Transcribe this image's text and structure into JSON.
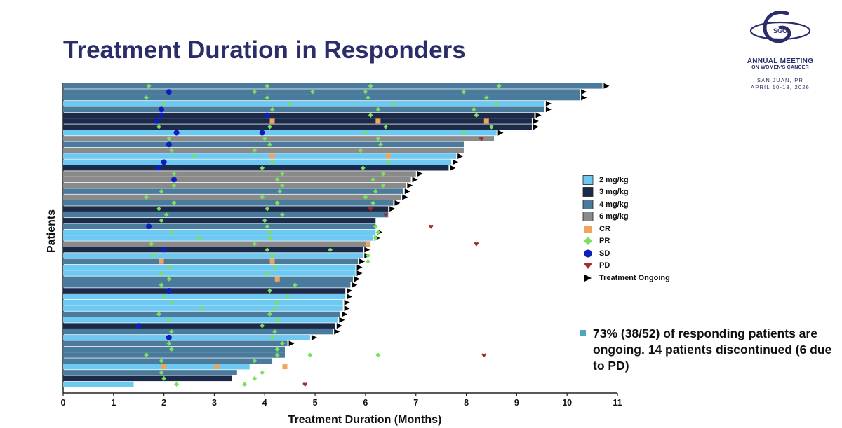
{
  "title": "Treatment Duration in Responders",
  "logo": {
    "mark": "SGO",
    "line1": "ANNUAL MEETING",
    "line2": "ON WOMEN'S CANCER",
    "line3": "SAN JUAN, PR",
    "line4": "APRIL 10-13, 2026"
  },
  "note": "73% (38/52) of responding patients are ongoing. 14 patients discontinued (6 due to PD)",
  "legend": [
    {
      "label": "2 mg/kg",
      "kind": "box",
      "color": "#6ec9f2"
    },
    {
      "label": "3 mg/kg",
      "kind": "box",
      "color": "#1c2a4a"
    },
    {
      "label": "4 mg/kg",
      "kind": "box",
      "color": "#4a7a9c"
    },
    {
      "label": "6 mg/kg",
      "kind": "box",
      "color": "#8a8a8a"
    },
    {
      "label": "CR",
      "kind": "square",
      "color": "#f2a55a"
    },
    {
      "label": "PR",
      "kind": "diamond",
      "color": "#7be060"
    },
    {
      "label": "SD",
      "kind": "circle",
      "color": "#0c1fbd"
    },
    {
      "label": "PD",
      "kind": "heart",
      "color": "#a82a2a"
    },
    {
      "label": "Treatment Ongoing",
      "kind": "triangle",
      "color": "#000000"
    }
  ],
  "chart_data": {
    "type": "swimmer",
    "title": "Treatment Duration in Responders",
    "xlabel": "Treatment Duration (Months)",
    "ylabel": "Patients",
    "xlim": [
      0,
      11
    ],
    "xticks": [
      0,
      1,
      2,
      3,
      4,
      5,
      6,
      7,
      8,
      9,
      10,
      11
    ],
    "dose_colors": {
      "2": "#6ec9f2",
      "3": "#1c2a4a",
      "4": "#4a7a9c",
      "6": "#8a8a8a"
    },
    "marker_colors": {
      "CR": "#f2a55a",
      "PR": "#7be060",
      "SD": "#0c1fbd",
      "PD": "#a82a2a"
    },
    "patients": [
      {
        "dose": 4,
        "duration": 10.7,
        "ongoing": true,
        "markers": [
          {
            "t": "PR",
            "x": 1.7
          },
          {
            "t": "PR",
            "x": 4.05
          },
          {
            "t": "PR",
            "x": 6.1
          },
          {
            "t": "PR",
            "x": 8.65
          }
        ]
      },
      {
        "dose": 4,
        "duration": 10.25,
        "ongoing": true,
        "markers": [
          {
            "t": "SD",
            "x": 2.1
          },
          {
            "t": "PR",
            "x": 3.8
          },
          {
            "t": "PR",
            "x": 4.95
          },
          {
            "t": "PR",
            "x": 6.0
          },
          {
            "t": "PR",
            "x": 7.95
          }
        ]
      },
      {
        "dose": 4,
        "duration": 10.25,
        "ongoing": true,
        "markers": [
          {
            "t": "PR",
            "x": 1.65
          },
          {
            "t": "PR",
            "x": 4.05
          },
          {
            "t": "PR",
            "x": 6.05
          },
          {
            "t": "PR",
            "x": 8.4
          }
        ]
      },
      {
        "dose": 2,
        "duration": 9.55,
        "ongoing": true,
        "markers": [
          {
            "t": "PR",
            "x": 2.0
          },
          {
            "t": "PR",
            "x": 4.5
          },
          {
            "t": "PR",
            "x": 6.55
          },
          {
            "t": "PR",
            "x": 8.6
          }
        ]
      },
      {
        "dose": 4,
        "duration": 9.55,
        "ongoing": true,
        "markers": [
          {
            "t": "SD",
            "x": 1.95
          },
          {
            "t": "PR",
            "x": 4.15
          },
          {
            "t": "PR",
            "x": 6.25
          },
          {
            "t": "PR",
            "x": 8.15
          }
        ]
      },
      {
        "dose": 3,
        "duration": 9.35,
        "ongoing": true,
        "markers": [
          {
            "t": "SD",
            "x": 1.95
          },
          {
            "t": "SD",
            "x": 4.05
          },
          {
            "t": "PR",
            "x": 6.1
          },
          {
            "t": "PR",
            "x": 8.2
          }
        ]
      },
      {
        "dose": 3,
        "duration": 9.3,
        "ongoing": true,
        "markers": [
          {
            "t": "SD",
            "x": 1.85
          },
          {
            "t": "CR",
            "x": 4.15
          },
          {
            "t": "CR",
            "x": 6.25
          },
          {
            "t": "CR",
            "x": 8.4
          }
        ]
      },
      {
        "dose": 3,
        "duration": 9.3,
        "ongoing": true,
        "markers": [
          {
            "t": "PR",
            "x": 1.9
          },
          {
            "t": "PR",
            "x": 4.1
          },
          {
            "t": "PR",
            "x": 6.4
          },
          {
            "t": "PR",
            "x": 8.5
          }
        ]
      },
      {
        "dose": 2,
        "duration": 8.6,
        "ongoing": true,
        "markers": [
          {
            "t": "SD",
            "x": 2.25
          },
          {
            "t": "SD",
            "x": 3.95
          },
          {
            "t": "PR",
            "x": 6.0
          },
          {
            "t": "PR",
            "x": 7.95
          }
        ]
      },
      {
        "dose": 6,
        "duration": 8.55,
        "ongoing": false,
        "markers": [
          {
            "t": "PR",
            "x": 2.1
          },
          {
            "t": "PR",
            "x": 4.0
          },
          {
            "t": "PR",
            "x": 6.25
          },
          {
            "t": "PD",
            "x": 8.3
          }
        ]
      },
      {
        "dose": 4,
        "duration": 7.95,
        "ongoing": false,
        "markers": [
          {
            "t": "SD",
            "x": 2.1
          },
          {
            "t": "PR",
            "x": 4.1
          },
          {
            "t": "PR",
            "x": 6.3
          }
        ]
      },
      {
        "dose": 6,
        "duration": 7.95,
        "ongoing": false,
        "markers": [
          {
            "t": "PR",
            "x": 2.15
          },
          {
            "t": "PR",
            "x": 3.8
          },
          {
            "t": "PR",
            "x": 5.9
          }
        ]
      },
      {
        "dose": 2,
        "duration": 7.8,
        "ongoing": true,
        "markers": [
          {
            "t": "PR",
            "x": 2.6
          },
          {
            "t": "CR",
            "x": 4.15
          },
          {
            "t": "CR",
            "x": 6.45
          }
        ]
      },
      {
        "dose": 2,
        "duration": 7.7,
        "ongoing": true,
        "markers": [
          {
            "t": "SD",
            "x": 2.0
          },
          {
            "t": "PR",
            "x": 4.15
          },
          {
            "t": "PR",
            "x": 6.45
          }
        ]
      },
      {
        "dose": 3,
        "duration": 7.65,
        "ongoing": true,
        "markers": [
          {
            "t": "SD",
            "x": 1.9
          },
          {
            "t": "PR",
            "x": 3.95
          },
          {
            "t": "PR",
            "x": 5.95
          }
        ]
      },
      {
        "dose": 6,
        "duration": 7.0,
        "ongoing": true,
        "markers": [
          {
            "t": "PR",
            "x": 2.2
          },
          {
            "t": "PR",
            "x": 4.35
          },
          {
            "t": "PR",
            "x": 6.35
          }
        ]
      },
      {
        "dose": 6,
        "duration": 6.9,
        "ongoing": true,
        "markers": [
          {
            "t": "SD",
            "x": 2.2
          },
          {
            "t": "PR",
            "x": 4.25
          },
          {
            "t": "PR",
            "x": 6.15
          }
        ]
      },
      {
        "dose": 6,
        "duration": 6.8,
        "ongoing": true,
        "markers": [
          {
            "t": "PR",
            "x": 2.2
          },
          {
            "t": "PR",
            "x": 4.35
          },
          {
            "t": "PR",
            "x": 6.35
          }
        ]
      },
      {
        "dose": 4,
        "duration": 6.75,
        "ongoing": true,
        "markers": [
          {
            "t": "PR",
            "x": 1.95
          },
          {
            "t": "PR",
            "x": 4.3
          },
          {
            "t": "PR",
            "x": 6.2
          }
        ]
      },
      {
        "dose": 6,
        "duration": 6.7,
        "ongoing": true,
        "markers": [
          {
            "t": "PR",
            "x": 1.65
          },
          {
            "t": "PR",
            "x": 3.95
          },
          {
            "t": "PR",
            "x": 6.0
          }
        ]
      },
      {
        "dose": 4,
        "duration": 6.55,
        "ongoing": true,
        "markers": [
          {
            "t": "PR",
            "x": 2.2
          },
          {
            "t": "PR",
            "x": 4.25
          },
          {
            "t": "PR",
            "x": 6.15
          }
        ]
      },
      {
        "dose": 3,
        "duration": 6.45,
        "ongoing": true,
        "markers": [
          {
            "t": "PR",
            "x": 1.9
          },
          {
            "t": "PR",
            "x": 4.05
          },
          {
            "t": "PD",
            "x": 6.1
          }
        ]
      },
      {
        "dose": 4,
        "duration": 6.45,
        "ongoing": false,
        "markers": [
          {
            "t": "PR",
            "x": 2.05
          },
          {
            "t": "PR",
            "x": 4.35
          },
          {
            "t": "PD",
            "x": 6.4
          }
        ]
      },
      {
        "dose": 3,
        "duration": 6.2,
        "ongoing": false,
        "markers": [
          {
            "t": "PR",
            "x": 1.95
          },
          {
            "t": "PR",
            "x": 4.0
          }
        ]
      },
      {
        "dose": 4,
        "duration": 6.2,
        "ongoing": false,
        "markers": [
          {
            "t": "SD",
            "x": 1.7
          },
          {
            "t": "PR",
            "x": 4.05
          },
          {
            "t": "PR",
            "x": 6.2
          },
          {
            "t": "PD",
            "x": 7.3
          }
        ]
      },
      {
        "dose": 2,
        "duration": 6.2,
        "ongoing": true,
        "markers": [
          {
            "t": "PR",
            "x": 2.15
          },
          {
            "t": "PR",
            "x": 4.1
          },
          {
            "t": "PR",
            "x": 6.25
          }
        ]
      },
      {
        "dose": 2,
        "duration": 6.15,
        "ongoing": true,
        "markers": [
          {
            "t": "PR",
            "x": 2.7
          },
          {
            "t": "PR",
            "x": 4.1
          },
          {
            "t": "PR",
            "x": 6.2
          }
        ]
      },
      {
        "dose": 6,
        "duration": 6.1,
        "ongoing": false,
        "markers": [
          {
            "t": "PR",
            "x": 1.75
          },
          {
            "t": "PR",
            "x": 3.8
          },
          {
            "t": "CR",
            "x": 6.05
          },
          {
            "t": "PD",
            "x": 8.2
          }
        ]
      },
      {
        "dose": 3,
        "duration": 5.95,
        "ongoing": true,
        "markers": [
          {
            "t": "SD",
            "x": 2.0
          },
          {
            "t": "PR",
            "x": 4.05
          },
          {
            "t": "PR",
            "x": 5.3
          }
        ]
      },
      {
        "dose": 2,
        "duration": 5.95,
        "ongoing": true,
        "markers": [
          {
            "t": "PR",
            "x": 1.8
          },
          {
            "t": "PR",
            "x": 4.15
          },
          {
            "t": "PR",
            "x": 6.05
          }
        ]
      },
      {
        "dose": 4,
        "duration": 5.85,
        "ongoing": true,
        "markers": [
          {
            "t": "CR",
            "x": 1.95
          },
          {
            "t": "CR",
            "x": 4.15
          },
          {
            "t": "PR",
            "x": 6.05
          }
        ]
      },
      {
        "dose": 2,
        "duration": 5.8,
        "ongoing": true,
        "markers": [
          {
            "t": "PR",
            "x": 2.1
          },
          {
            "t": "PR",
            "x": 4.2
          }
        ]
      },
      {
        "dose": 2,
        "duration": 5.8,
        "ongoing": true,
        "markers": [
          {
            "t": "PR",
            "x": 1.95
          },
          {
            "t": "PR",
            "x": 4.05
          }
        ]
      },
      {
        "dose": 4,
        "duration": 5.75,
        "ongoing": true,
        "markers": [
          {
            "t": "PR",
            "x": 2.1
          },
          {
            "t": "CR",
            "x": 4.25
          }
        ]
      },
      {
        "dose": 4,
        "duration": 5.7,
        "ongoing": true,
        "markers": [
          {
            "t": "PR",
            "x": 1.95
          },
          {
            "t": "PR",
            "x": 4.6
          }
        ]
      },
      {
        "dose": 3,
        "duration": 5.6,
        "ongoing": true,
        "markers": [
          {
            "t": "SD",
            "x": 2.1
          },
          {
            "t": "PR",
            "x": 4.1
          }
        ]
      },
      {
        "dose": 2,
        "duration": 5.6,
        "ongoing": true,
        "markers": [
          {
            "t": "PR",
            "x": 2.0
          },
          {
            "t": "PR",
            "x": 4.45
          }
        ]
      },
      {
        "dose": 2,
        "duration": 5.55,
        "ongoing": true,
        "markers": [
          {
            "t": "PR",
            "x": 2.15
          },
          {
            "t": "PR",
            "x": 4.25
          }
        ]
      },
      {
        "dose": 2,
        "duration": 5.55,
        "ongoing": true,
        "markers": [
          {
            "t": "PR",
            "x": 2.75
          },
          {
            "t": "PR",
            "x": 4.2
          }
        ]
      },
      {
        "dose": 4,
        "duration": 5.5,
        "ongoing": true,
        "markers": [
          {
            "t": "PR",
            "x": 1.9
          },
          {
            "t": "PR",
            "x": 4.1
          }
        ]
      },
      {
        "dose": 2,
        "duration": 5.45,
        "ongoing": true,
        "markers": [
          {
            "t": "PR",
            "x": 2.1
          },
          {
            "t": "PR",
            "x": 4.25
          }
        ]
      },
      {
        "dose": 3,
        "duration": 5.4,
        "ongoing": true,
        "markers": [
          {
            "t": "SD",
            "x": 1.5
          },
          {
            "t": "PR",
            "x": 3.95
          }
        ]
      },
      {
        "dose": 4,
        "duration": 5.35,
        "ongoing": true,
        "markers": [
          {
            "t": "PR",
            "x": 2.15
          },
          {
            "t": "PR",
            "x": 4.2
          }
        ]
      },
      {
        "dose": 2,
        "duration": 4.9,
        "ongoing": true,
        "markers": [
          {
            "t": "SD",
            "x": 2.1
          },
          {
            "t": "PR",
            "x": 4.15
          }
        ]
      },
      {
        "dose": 4,
        "duration": 4.45,
        "ongoing": true,
        "markers": [
          {
            "t": "PR",
            "x": 2.1
          },
          {
            "t": "PR",
            "x": 4.35
          }
        ]
      },
      {
        "dose": 4,
        "duration": 4.4,
        "ongoing": false,
        "markers": [
          {
            "t": "PR",
            "x": 2.15
          },
          {
            "t": "PR",
            "x": 4.25
          }
        ]
      },
      {
        "dose": 4,
        "duration": 4.4,
        "ongoing": false,
        "markers": [
          {
            "t": "PR",
            "x": 1.65
          },
          {
            "t": "PR",
            "x": 4.25
          },
          {
            "t": "PR",
            "x": 4.9
          },
          {
            "t": "PR",
            "x": 6.25
          },
          {
            "t": "PD",
            "x": 8.35
          }
        ]
      },
      {
        "dose": 4,
        "duration": 4.15,
        "ongoing": false,
        "markers": [
          {
            "t": "PR",
            "x": 1.95
          },
          {
            "t": "PR",
            "x": 3.8
          }
        ]
      },
      {
        "dose": 2,
        "duration": 3.7,
        "ongoing": false,
        "markers": [
          {
            "t": "CR",
            "x": 2.0
          },
          {
            "t": "CR",
            "x": 3.05
          },
          {
            "t": "CR",
            "x": 4.4
          }
        ]
      },
      {
        "dose": 4,
        "duration": 3.45,
        "ongoing": false,
        "markers": [
          {
            "t": "PR",
            "x": 1.95
          },
          {
            "t": "PR",
            "x": 3.95
          }
        ]
      },
      {
        "dose": 3,
        "duration": 3.35,
        "ongoing": false,
        "markers": [
          {
            "t": "PR",
            "x": 2.0
          },
          {
            "t": "PR",
            "x": 3.8
          }
        ]
      },
      {
        "dose": 2,
        "duration": 1.4,
        "ongoing": false,
        "markers": [
          {
            "t": "PR",
            "x": 2.25
          },
          {
            "t": "PR",
            "x": 3.6
          },
          {
            "t": "PD",
            "x": 4.8
          }
        ]
      }
    ]
  }
}
